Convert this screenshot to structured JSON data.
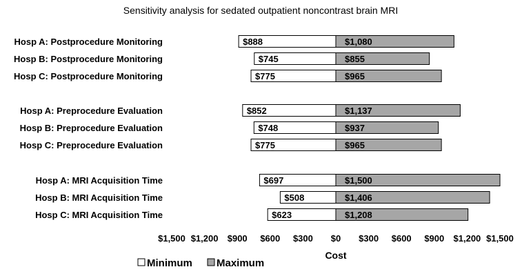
{
  "chart_data": {
    "type": "bar",
    "orientation": "horizontal",
    "title": "Sensitivity analysis for sedated outpatient noncontrast brain MRI",
    "xlabel": "Cost",
    "ylabel": "",
    "xlim": [
      -1500,
      1500
    ],
    "xticks": [
      {
        "value": -1500,
        "label": "$1,500"
      },
      {
        "value": -1200,
        "label": "$1,200"
      },
      {
        "value": -900,
        "label": "$900"
      },
      {
        "value": -600,
        "label": "$600"
      },
      {
        "value": -300,
        "label": "$300"
      },
      {
        "value": 0,
        "label": "$0"
      },
      {
        "value": 300,
        "label": "$300"
      },
      {
        "value": 600,
        "label": "$600"
      },
      {
        "value": 900,
        "label": "$900"
      },
      {
        "value": 1200,
        "label": "$1,200"
      },
      {
        "value": 1500,
        "label": "$1,500"
      }
    ],
    "categories": [
      "Hosp A: Postprocedure Monitoring",
      "Hosp B: Postprocedure Monitoring",
      "Hosp C: Postprocedure Monitoring",
      "Hosp A: Preprocedure Evaluation",
      "Hosp B: Preprocedure Evaluation",
      "Hosp C: Preprocedure Evaluation",
      "Hosp A: MRI Acquisition Time",
      "Hosp B: MRI Acquisition Time",
      "Hosp C: MRI Acquisition Time"
    ],
    "groups": [
      [
        0,
        1,
        2
      ],
      [
        3,
        4,
        5
      ],
      [
        6,
        7,
        8
      ]
    ],
    "series": [
      {
        "name": "Minimum",
        "color": "#ffffff",
        "values": [
          888,
          745,
          775,
          852,
          748,
          775,
          697,
          508,
          623
        ],
        "labels": [
          "$888",
          "$745",
          "$775",
          "$852",
          "$748",
          "$775",
          "$697",
          "$508",
          "$623"
        ]
      },
      {
        "name": "Maximum",
        "color": "#a6a6a6",
        "values": [
          1080,
          855,
          965,
          1137,
          937,
          965,
          1500,
          1406,
          1208
        ],
        "labels": [
          "$1,080",
          "$855",
          "$965",
          "$1,137",
          "$937",
          "$965",
          "$1,500",
          "$1,406",
          "$1,208"
        ]
      }
    ],
    "legend": {
      "position": "bottom-left",
      "entries": [
        "Minimum",
        "Maximum"
      ]
    },
    "grid": false
  }
}
